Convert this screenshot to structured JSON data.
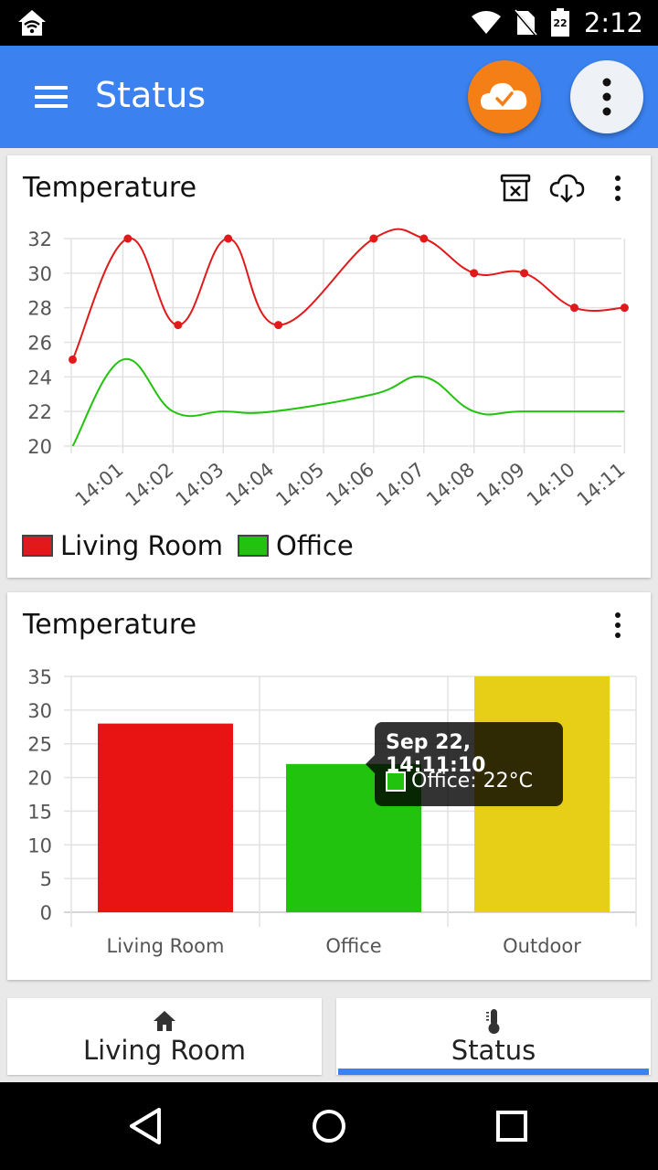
{
  "status_bar": {
    "time": "2:12",
    "battery_level": "22",
    "icons": [
      "home-wifi-icon",
      "wifi-icon",
      "no-sim-icon",
      "battery-icon"
    ]
  },
  "app_bar": {
    "title": "Status",
    "menu_icon": "hamburger-menu-icon",
    "cloud_icon": "cloud-check-icon",
    "more_icon": "more-vert-icon",
    "cloud_color": "#f57f17",
    "bar_color": "#3b82f0"
  },
  "line_card": {
    "title": "Temperature",
    "tools": [
      "archive-delete-icon",
      "cloud-download-icon",
      "more-vert-icon"
    ],
    "chart_data": {
      "type": "line",
      "title": "Temperature",
      "x": [
        "14:00:40",
        "14:01",
        "14:02",
        "14:03",
        "14:04",
        "14:05",
        "14:06",
        "14:07",
        "14:08",
        "14:09",
        "14:10",
        "14:11"
      ],
      "x_tick_labels": [
        "14:01",
        "14:02",
        "14:03",
        "14:04",
        "14:05",
        "14:06",
        "14:07",
        "14:08",
        "14:09",
        "14:10",
        "14:11"
      ],
      "y_ticks": [
        20,
        22,
        24,
        26,
        28,
        30,
        32
      ],
      "ylim": [
        20,
        32
      ],
      "grid": true,
      "legend_position": "bottom-left",
      "series": [
        {
          "name": "Living Room",
          "color": "#e2191b",
          "points": [
            {
              "t": 0.0,
              "y": 25
            },
            {
              "t": 1.1,
              "y": 32
            },
            {
              "t": 2.1,
              "y": 27
            },
            {
              "t": 3.1,
              "y": 32
            },
            {
              "t": 4.1,
              "y": 27
            },
            {
              "t": 6.0,
              "y": 32
            },
            {
              "t": 7.0,
              "y": 32
            },
            {
              "t": 8.0,
              "y": 30
            },
            {
              "t": 9.0,
              "y": 30
            },
            {
              "t": 10.0,
              "y": 28
            },
            {
              "t": 11.0,
              "y": 28
            }
          ]
        },
        {
          "name": "Office",
          "color": "#22c30e",
          "points": [
            {
              "t": 0.0,
              "y": 20
            },
            {
              "t": 1.0,
              "y": 25
            },
            {
              "t": 2.0,
              "y": 22
            },
            {
              "t": 3.0,
              "y": 22
            },
            {
              "t": 4.0,
              "y": 22
            },
            {
              "t": 6.0,
              "y": 23
            },
            {
              "t": 7.0,
              "y": 24
            },
            {
              "t": 8.0,
              "y": 22
            },
            {
              "t": 9.0,
              "y": 22
            },
            {
              "t": 11.0,
              "y": 22
            }
          ]
        }
      ]
    },
    "legend": [
      {
        "label": "Living Room",
        "color": "#e2191b"
      },
      {
        "label": "Office",
        "color": "#22c30e"
      }
    ]
  },
  "bar_card": {
    "title": "Temperature",
    "tools": [
      "more-vert-icon"
    ],
    "chart_data": {
      "type": "bar",
      "title": "Temperature",
      "categories": [
        "Living Room",
        "Office",
        "Outdoor"
      ],
      "values": [
        28,
        22,
        35
      ],
      "colors": [
        "#e81313",
        "#22c30e",
        "#e8cf17"
      ],
      "y_ticks": [
        0,
        5,
        10,
        15,
        20,
        25,
        30,
        35
      ],
      "ylim": [
        0,
        35
      ],
      "grid": true
    },
    "tooltip": {
      "title": "Sep 22, 14:11:10",
      "text": "Office: 22°C"
    }
  },
  "tabs": [
    {
      "label": "Living Room",
      "icon": "home-icon",
      "selected": false
    },
    {
      "label": "Status",
      "icon": "thermometer-icon",
      "selected": true
    }
  ],
  "nav_bar": {
    "icons": [
      "back-icon",
      "home-circle-icon",
      "recents-icon"
    ]
  }
}
